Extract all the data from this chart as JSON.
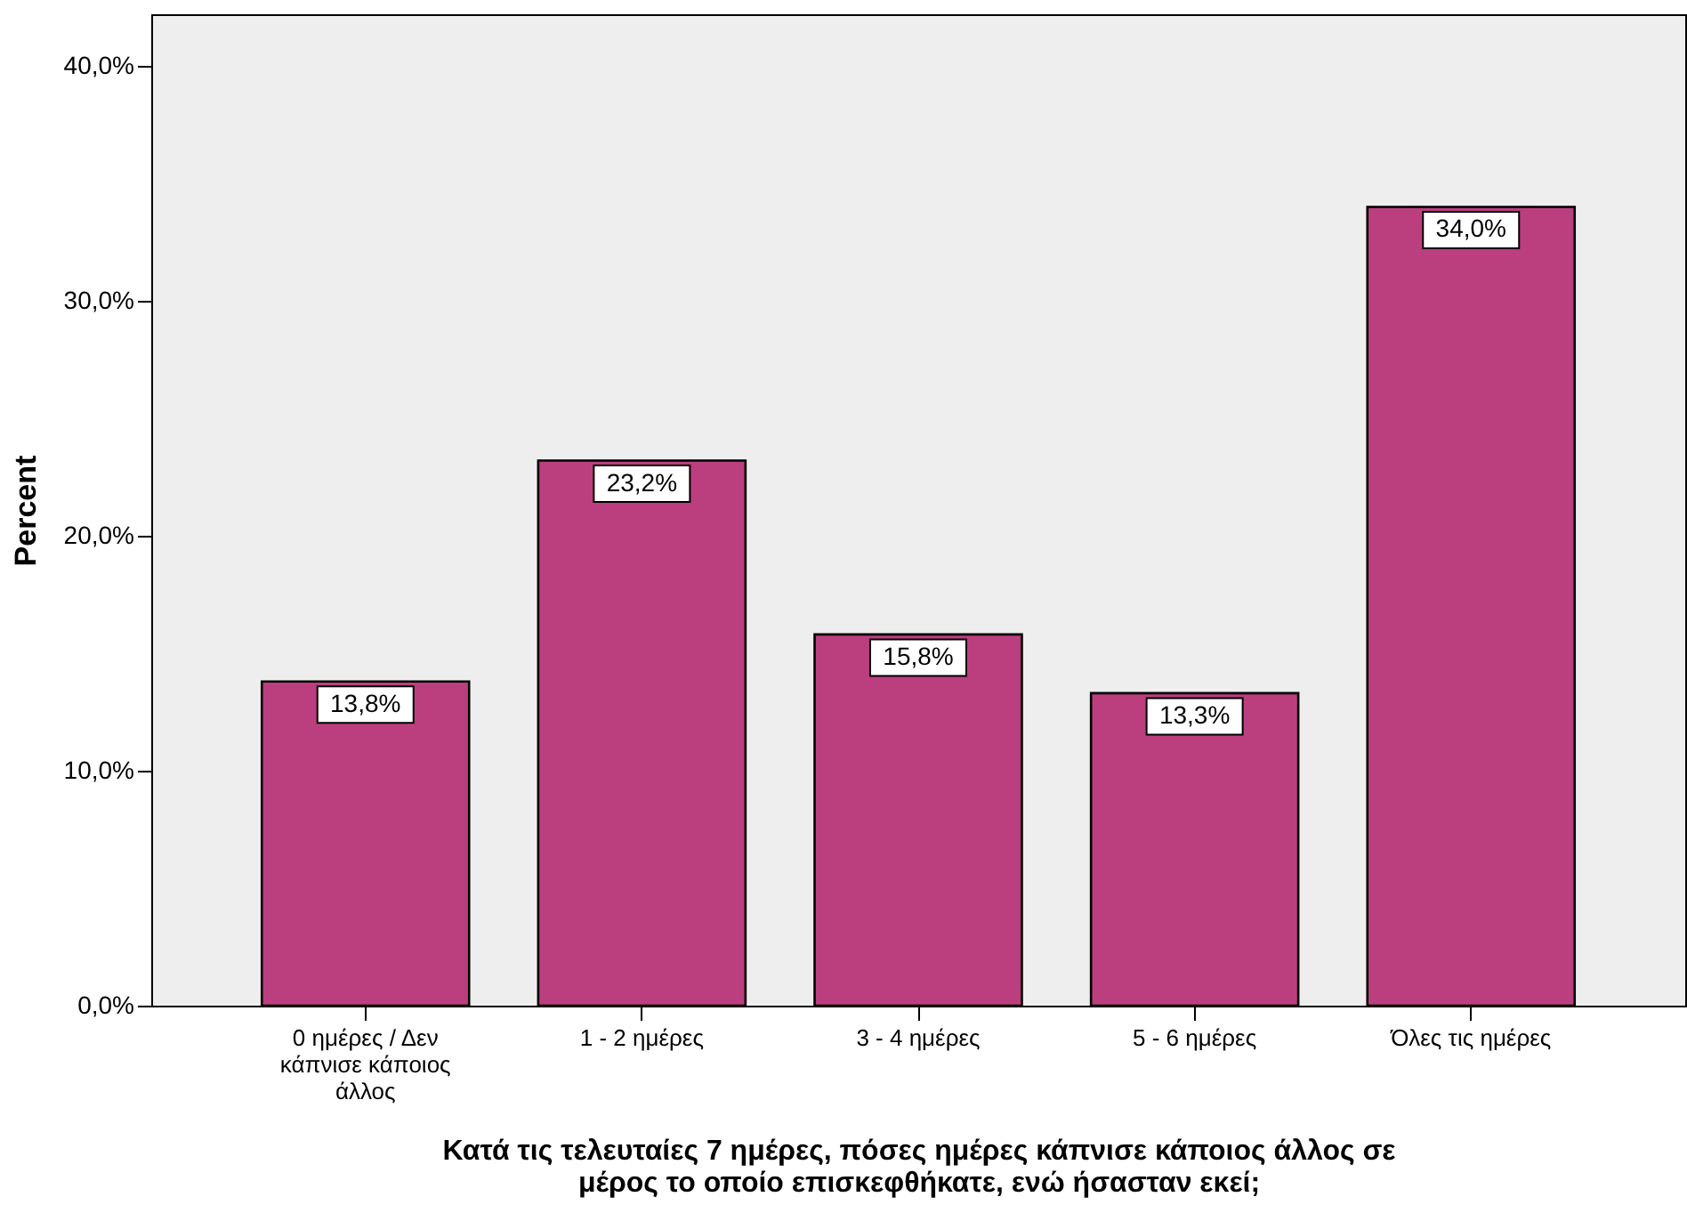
{
  "chart_data": {
    "type": "bar",
    "xlabel": "Κατά τις τελευταίες 7 ημέρες, πόσες ημέρες κάπνισε κάποιος άλλος σε μέρος το οποίο επισκεφθήκατε, ενώ ήσασταν εκεί;",
    "ylabel": "Percent",
    "categories": [
      "0 ημέρες / Δεν κάπνισε κάποιος άλλος",
      "1 - 2 ημέρες",
      "3 - 4 ημέρες",
      "5 - 6 ημέρες",
      "Όλες τις ημέρες"
    ],
    "values": [
      13.8,
      23.2,
      15.8,
      13.3,
      34.0
    ],
    "value_labels": [
      "13,8%",
      "23,2%",
      "15,8%",
      "13,3%",
      "34,0%"
    ],
    "color": "#bb3f7e",
    "ylim": [
      0,
      42.2
    ],
    "yticks": [
      {
        "value": 0,
        "label": "0,0%"
      },
      {
        "value": 10,
        "label": "10,0%"
      },
      {
        "value": 20,
        "label": "20,0%"
      },
      {
        "value": 30,
        "label": "30,0%"
      },
      {
        "value": 40,
        "label": "40,0%"
      }
    ],
    "grid": false
  }
}
